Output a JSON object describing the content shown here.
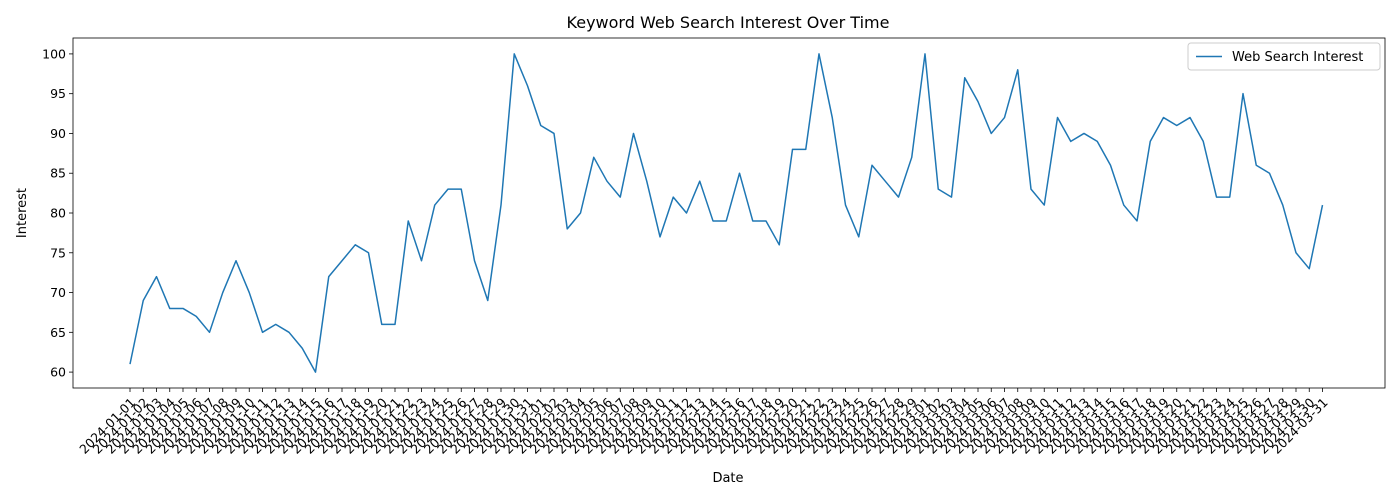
{
  "chart_data": {
    "type": "line",
    "title": "Keyword Web Search Interest Over Time",
    "xlabel": "Date",
    "ylabel": "Interest",
    "ylim": [
      58,
      102
    ],
    "yticks": [
      60,
      65,
      70,
      75,
      80,
      85,
      90,
      95,
      100
    ],
    "grid": false,
    "legend_position": "top-right",
    "colors": {
      "line": "#1f77b4"
    },
    "x": [
      "2024-01-01",
      "2024-01-02",
      "2024-01-03",
      "2024-01-04",
      "2024-01-05",
      "2024-01-06",
      "2024-01-07",
      "2024-01-08",
      "2024-01-09",
      "2024-01-10",
      "2024-01-11",
      "2024-01-12",
      "2024-01-13",
      "2024-01-14",
      "2024-01-15",
      "2024-01-16",
      "2024-01-17",
      "2024-01-18",
      "2024-01-19",
      "2024-01-20",
      "2024-01-21",
      "2024-01-22",
      "2024-01-23",
      "2024-01-24",
      "2024-01-25",
      "2024-01-26",
      "2024-01-27",
      "2024-01-28",
      "2024-01-29",
      "2024-01-30",
      "2024-01-31",
      "2024-02-01",
      "2024-02-02",
      "2024-02-03",
      "2024-02-04",
      "2024-02-05",
      "2024-02-06",
      "2024-02-07",
      "2024-02-08",
      "2024-02-09",
      "2024-02-10",
      "2024-02-11",
      "2024-02-12",
      "2024-02-13",
      "2024-02-14",
      "2024-02-15",
      "2024-02-16",
      "2024-02-17",
      "2024-02-18",
      "2024-02-19",
      "2024-02-20",
      "2024-02-21",
      "2024-02-22",
      "2024-02-23",
      "2024-02-24",
      "2024-02-25",
      "2024-02-26",
      "2024-02-27",
      "2024-02-28",
      "2024-02-29",
      "2024-03-01",
      "2024-03-02",
      "2024-03-03",
      "2024-03-04",
      "2024-03-05",
      "2024-03-06",
      "2024-03-07",
      "2024-03-08",
      "2024-03-09",
      "2024-03-10",
      "2024-03-11",
      "2024-03-12",
      "2024-03-13",
      "2024-03-14",
      "2024-03-15",
      "2024-03-16",
      "2024-03-17",
      "2024-03-18",
      "2024-03-19",
      "2024-03-20",
      "2024-03-21",
      "2024-03-22",
      "2024-03-23",
      "2024-03-24",
      "2024-03-25",
      "2024-03-26",
      "2024-03-27",
      "2024-03-28",
      "2024-03-29",
      "2024-03-30",
      "2024-03-31"
    ],
    "series": [
      {
        "name": "Web Search Interest",
        "values": [
          61,
          69,
          72,
          68,
          68,
          67,
          65,
          70,
          74,
          70,
          65,
          66,
          65,
          63,
          60,
          72,
          74,
          76,
          75,
          66,
          66,
          79,
          74,
          81,
          83,
          83,
          74,
          69,
          81,
          100,
          96,
          91,
          90,
          78,
          80,
          87,
          84,
          82,
          90,
          84,
          77,
          82,
          80,
          84,
          79,
          79,
          85,
          79,
          79,
          76,
          88,
          88,
          100,
          92,
          81,
          77,
          86,
          84,
          82,
          87,
          100,
          83,
          82,
          97,
          94,
          90,
          92,
          98,
          83,
          81,
          92,
          89,
          90,
          89,
          86,
          81,
          79,
          89,
          92,
          91,
          92,
          89,
          82,
          82,
          95,
          86,
          85,
          81,
          75,
          73,
          81
        ]
      }
    ]
  }
}
